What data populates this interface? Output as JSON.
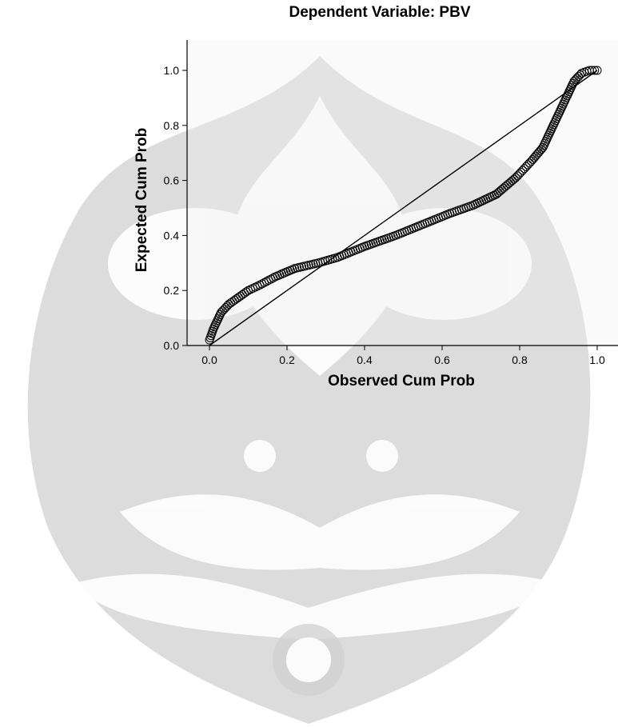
{
  "chart_data": {
    "type": "scatter",
    "title": "Dependent Variable: PBV",
    "xlabel": "Observed Cum Prob",
    "ylabel": "Expected Cum Prob",
    "xlim": [
      0.0,
      1.0
    ],
    "ylim": [
      0.0,
      1.0
    ],
    "xticks": [
      "0.0",
      "0.2",
      "0.4",
      "0.6",
      "0.8",
      "1.0"
    ],
    "yticks": [
      "0.0",
      "0.2",
      "0.4",
      "0.6",
      "0.8",
      "1.0"
    ],
    "grid": false,
    "plot_background": "#f0f0f0",
    "marker": "open-circle",
    "reference_line": {
      "from": [
        0,
        0
      ],
      "to": [
        1,
        1
      ]
    },
    "curve_points": [
      [
        0.0,
        0.02
      ],
      [
        0.01,
        0.06
      ],
      [
        0.02,
        0.09
      ],
      [
        0.03,
        0.12
      ],
      [
        0.05,
        0.15
      ],
      [
        0.07,
        0.17
      ],
      [
        0.1,
        0.2
      ],
      [
        0.13,
        0.22
      ],
      [
        0.17,
        0.25
      ],
      [
        0.22,
        0.28
      ],
      [
        0.28,
        0.3
      ],
      [
        0.33,
        0.32
      ],
      [
        0.4,
        0.36
      ],
      [
        0.48,
        0.4
      ],
      [
        0.55,
        0.44
      ],
      [
        0.62,
        0.48
      ],
      [
        0.68,
        0.51
      ],
      [
        0.74,
        0.55
      ],
      [
        0.79,
        0.61
      ],
      [
        0.83,
        0.67
      ],
      [
        0.86,
        0.72
      ],
      [
        0.88,
        0.78
      ],
      [
        0.9,
        0.84
      ],
      [
        0.92,
        0.9
      ],
      [
        0.94,
        0.96
      ],
      [
        0.96,
        0.99
      ],
      [
        0.98,
        1.0
      ],
      [
        1.0,
        1.0
      ]
    ]
  }
}
